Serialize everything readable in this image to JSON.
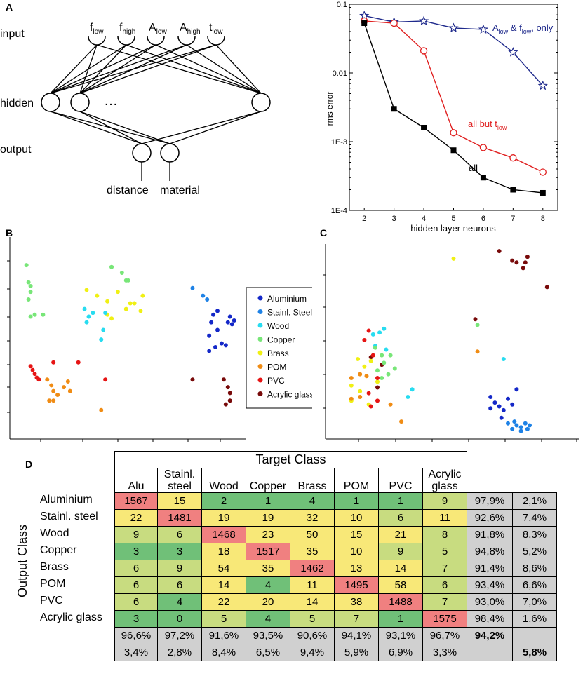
{
  "panels": {
    "a": "A",
    "b": "B",
    "c": "C",
    "d": "D"
  },
  "network": {
    "input_label": "input",
    "hidden_label": "hidden",
    "output_label": "output",
    "inputs": [
      {
        "main": "f",
        "sub": "low"
      },
      {
        "main": "f",
        "sub": "high"
      },
      {
        "main": "A",
        "sub": "low"
      },
      {
        "main": "A",
        "sub": "high"
      },
      {
        "main": "t",
        "sub": "low"
      }
    ],
    "ellipsis": "…",
    "outputs": [
      "distance",
      "material"
    ]
  },
  "chart_data": [
    {
      "type": "line",
      "ylabel": "rms error",
      "xlabel": "hidden layer neurons",
      "yscale": "log",
      "ylim": [
        0.0001,
        0.1
      ],
      "xlim": [
        1.5,
        8.5
      ],
      "x_ticks": [
        2,
        3,
        4,
        5,
        6,
        7,
        8
      ],
      "y_ticks": [
        {
          "value": 0.1,
          "label": "0.1"
        },
        {
          "value": 0.01,
          "label": "0.01"
        },
        {
          "value": 0.001,
          "label": "1E-3"
        },
        {
          "value": 0.0001,
          "label": "1E-4"
        }
      ],
      "series": [
        {
          "name": "A_low & f_low, only",
          "label_main": "A",
          "label_sub": "low",
          "label_mid": " & f",
          "label_sub2": "low",
          "label_end": ", only",
          "color": "#1f2a8c",
          "marker": "star",
          "x": [
            2,
            3,
            4,
            5,
            6,
            7,
            8
          ],
          "values": [
            0.068,
            0.055,
            0.057,
            0.045,
            0.043,
            0.02,
            0.0065
          ]
        },
        {
          "name": "all but t_low",
          "label_main": "all but t",
          "label_sub": "low",
          "color": "#e02020",
          "marker": "open-circle",
          "x": [
            2,
            3,
            4,
            5,
            6,
            7,
            8
          ],
          "values": [
            0.057,
            0.053,
            0.021,
            0.00135,
            0.00082,
            0.00058,
            0.00036
          ]
        },
        {
          "name": "all",
          "label_main": "all",
          "color": "#000000",
          "marker": "square",
          "x": [
            2,
            3,
            4,
            5,
            6,
            7,
            8
          ],
          "values": [
            0.053,
            0.003,
            0.0016,
            0.00075,
            0.0003,
            0.0002,
            0.00018
          ]
        }
      ]
    },
    {
      "type": "scatter",
      "panel": "B",
      "legend": [
        {
          "name": "Aluminium",
          "color": "#1428c8"
        },
        {
          "name": "Stainl. Steel",
          "color": "#1e82e6"
        },
        {
          "name": "Wood",
          "color": "#28dcf0"
        },
        {
          "name": "Copper",
          "color": "#78e678"
        },
        {
          "name": "Brass",
          "color": "#f0f014"
        },
        {
          "name": "POM",
          "color": "#f08c14"
        },
        {
          "name": "PVC",
          "color": "#e61414"
        },
        {
          "name": "Acrylic glass",
          "color": "#780a0a"
        }
      ],
      "points": [
        [
          0.08,
          0.86,
          3
        ],
        [
          0.09,
          0.77,
          3
        ],
        [
          0.1,
          0.75,
          3
        ],
        [
          0.1,
          0.72,
          3
        ],
        [
          0.09,
          0.68,
          3
        ],
        [
          0.12,
          0.6,
          3
        ],
        [
          0.1,
          0.59,
          3
        ],
        [
          0.16,
          0.6,
          3
        ],
        [
          0.49,
          0.85,
          3
        ],
        [
          0.54,
          0.82,
          3
        ],
        [
          0.56,
          0.78,
          3
        ],
        [
          0.57,
          0.78,
          3
        ],
        [
          0.37,
          0.73,
          4
        ],
        [
          0.42,
          0.7,
          4
        ],
        [
          0.47,
          0.67,
          4
        ],
        [
          0.52,
          0.72,
          4
        ],
        [
          0.58,
          0.66,
          4
        ],
        [
          0.56,
          0.63,
          4
        ],
        [
          0.6,
          0.66,
          4
        ],
        [
          0.64,
          0.7,
          4
        ],
        [
          0.63,
          0.62,
          4
        ],
        [
          0.47,
          0.6,
          4
        ],
        [
          0.49,
          0.58,
          4
        ],
        [
          0.36,
          0.63,
          2
        ],
        [
          0.38,
          0.59,
          2
        ],
        [
          0.4,
          0.61,
          2
        ],
        [
          0.37,
          0.56,
          2
        ],
        [
          0.46,
          0.61,
          2
        ],
        [
          0.45,
          0.52,
          2
        ],
        [
          0.44,
          0.47,
          2
        ],
        [
          0.88,
          0.74,
          1
        ],
        [
          0.93,
          0.7,
          1
        ],
        [
          0.95,
          0.68,
          1
        ],
        [
          1.0,
          0.62,
          0
        ],
        [
          0.98,
          0.6,
          0
        ],
        [
          0.97,
          0.56,
          0
        ],
        [
          1.0,
          0.52,
          0
        ],
        [
          0.96,
          0.49,
          0
        ],
        [
          1.02,
          0.45,
          0
        ],
        [
          0.99,
          0.43,
          0
        ],
        [
          0.96,
          0.41,
          0
        ],
        [
          1.05,
          0.56,
          0
        ],
        [
          1.07,
          0.55,
          0
        ],
        [
          1.08,
          0.57,
          0
        ],
        [
          1.06,
          0.59,
          0
        ],
        [
          1.04,
          0.44,
          0
        ],
        [
          0.1,
          0.33,
          6
        ],
        [
          0.11,
          0.31,
          6
        ],
        [
          0.12,
          0.29,
          6
        ],
        [
          0.13,
          0.27,
          6
        ],
        [
          0.14,
          0.26,
          6
        ],
        [
          0.21,
          0.35,
          6
        ],
        [
          0.33,
          0.35,
          6
        ],
        [
          0.46,
          0.26,
          6
        ],
        [
          0.18,
          0.26,
          5
        ],
        [
          0.2,
          0.23,
          5
        ],
        [
          0.21,
          0.2,
          5
        ],
        [
          0.23,
          0.18,
          5
        ],
        [
          0.19,
          0.15,
          5
        ],
        [
          0.21,
          0.15,
          5
        ],
        [
          0.26,
          0.22,
          5
        ],
        [
          0.28,
          0.25,
          5
        ],
        [
          0.29,
          0.2,
          5
        ],
        [
          0.44,
          0.1,
          5
        ],
        [
          0.88,
          0.26,
          7
        ],
        [
          1.03,
          0.26,
          7
        ],
        [
          1.05,
          0.22,
          7
        ],
        [
          1.06,
          0.19,
          7
        ],
        [
          1.06,
          0.15,
          7
        ],
        [
          1.04,
          0.13,
          7
        ]
      ]
    },
    {
      "type": "scatter",
      "panel": "C",
      "points": [
        [
          0.76,
          0.97,
          7
        ],
        [
          0.82,
          0.92,
          7
        ],
        [
          0.84,
          0.91,
          7
        ],
        [
          0.88,
          0.91,
          7
        ],
        [
          0.89,
          0.94,
          7
        ],
        [
          0.87,
          0.88,
          7
        ],
        [
          0.98,
          0.78,
          7
        ],
        [
          0.65,
          0.61,
          7
        ],
        [
          0.17,
          0.41,
          7
        ],
        [
          0.22,
          0.37,
          7
        ],
        [
          0.2,
          0.25,
          7
        ],
        [
          0.55,
          0.93,
          4
        ],
        [
          0.11,
          0.4,
          4
        ],
        [
          0.14,
          0.36,
          4
        ],
        [
          0.17,
          0.39,
          4
        ],
        [
          0.12,
          0.23,
          4
        ],
        [
          0.08,
          0.26,
          4
        ],
        [
          0.08,
          0.18,
          4
        ],
        [
          0.16,
          0.16,
          4
        ],
        [
          0.2,
          0.28,
          4
        ],
        [
          0.18,
          0.53,
          2
        ],
        [
          0.21,
          0.54,
          2
        ],
        [
          0.23,
          0.56,
          2
        ],
        [
          0.19,
          0.47,
          2
        ],
        [
          0.24,
          0.45,
          2
        ],
        [
          0.36,
          0.24,
          2
        ],
        [
          0.34,
          0.2,
          2
        ],
        [
          0.78,
          0.4,
          2
        ],
        [
          0.66,
          0.58,
          3
        ],
        [
          0.19,
          0.46,
          3
        ],
        [
          0.22,
          0.42,
          3
        ],
        [
          0.23,
          0.38,
          3
        ],
        [
          0.25,
          0.32,
          3
        ],
        [
          0.28,
          0.35,
          3
        ],
        [
          0.22,
          0.3,
          3
        ],
        [
          0.26,
          0.42,
          3
        ],
        [
          0.2,
          0.34,
          3
        ],
        [
          0.08,
          0.3,
          5
        ],
        [
          0.12,
          0.32,
          5
        ],
        [
          0.15,
          0.31,
          5
        ],
        [
          0.12,
          0.2,
          5
        ],
        [
          0.26,
          0.16,
          5
        ],
        [
          0.31,
          0.07,
          5
        ],
        [
          0.66,
          0.44,
          5
        ],
        [
          0.08,
          0.19,
          5
        ],
        [
          0.16,
          0.55,
          6
        ],
        [
          0.14,
          0.5,
          6
        ],
        [
          0.18,
          0.42,
          6
        ],
        [
          0.2,
          0.3,
          6
        ],
        [
          0.16,
          0.22,
          6
        ],
        [
          0.2,
          0.18,
          6
        ],
        [
          0.17,
          0.15,
          6
        ],
        [
          0.72,
          0.2,
          0
        ],
        [
          0.74,
          0.17,
          0
        ],
        [
          0.76,
          0.15,
          0
        ],
        [
          0.8,
          0.19,
          0
        ],
        [
          0.78,
          0.13,
          0
        ],
        [
          0.82,
          0.16,
          0
        ],
        [
          0.72,
          0.14,
          0
        ],
        [
          0.84,
          0.24,
          0
        ],
        [
          0.77,
          0.09,
          0
        ],
        [
          0.8,
          0.06,
          1
        ],
        [
          0.82,
          0.03,
          1
        ],
        [
          0.84,
          0.05,
          1
        ],
        [
          0.86,
          0.04,
          1
        ],
        [
          0.88,
          0.06,
          1
        ],
        [
          0.86,
          0.02,
          1
        ],
        [
          0.9,
          0.05,
          1
        ],
        [
          0.89,
          0.03,
          1
        ],
        [
          0.83,
          0.07,
          1
        ]
      ]
    }
  ],
  "confusion": {
    "target_class_label": "Target Class",
    "output_class_label": "Output Class",
    "col_headers": [
      {
        "l1": "",
        "l2": "Alu"
      },
      {
        "l1": "Stainl.",
        "l2": "steel"
      },
      {
        "l1": "",
        "l2": "Wood"
      },
      {
        "l1": "",
        "l2": "Copper"
      },
      {
        "l1": "",
        "l2": "Brass"
      },
      {
        "l1": "",
        "l2": "POM"
      },
      {
        "l1": "",
        "l2": "PVC"
      },
      {
        "l1": "Acrylic",
        "l2": "glass"
      }
    ],
    "row_labels": [
      "Aluminium",
      "Stainl. steel",
      "Wood",
      "Copper",
      "Brass",
      "POM",
      "PVC",
      "Acrylic glass"
    ],
    "matrix": [
      [
        "1567",
        "15",
        "2",
        "1",
        "4",
        "1",
        "1",
        "9"
      ],
      [
        "22",
        "1481",
        "19",
        "19",
        "32",
        "10",
        "6",
        "11"
      ],
      [
        "9",
        "6",
        "1468",
        "23",
        "50",
        "15",
        "21",
        "8"
      ],
      [
        "3",
        "3",
        "18",
        "1517",
        "35",
        "10",
        "9",
        "5"
      ],
      [
        "6",
        "9",
        "54",
        "35",
        "1462",
        "13",
        "14",
        "7"
      ],
      [
        "6",
        "6",
        "14",
        "4",
        "11",
        "1495",
        "58",
        "6"
      ],
      [
        "6",
        "4",
        "22",
        "20",
        "14",
        "38",
        "1488",
        "7"
      ],
      [
        "3",
        "0",
        "5",
        "4",
        "5",
        "7",
        "1",
        "1575"
      ]
    ],
    "row_correct": [
      "97,9%",
      "92,6%",
      "91,8%",
      "94,8%",
      "91,4%",
      "93,4%",
      "93,0%",
      "98,4%"
    ],
    "row_error": [
      "2,1%",
      "7,4%",
      "8,3%",
      "5,2%",
      "8,6%",
      "6,6%",
      "7,0%",
      "1,6%"
    ],
    "col_correct": [
      "96,6%",
      "97,2%",
      "91,6%",
      "93,5%",
      "90,6%",
      "94,1%",
      "93,1%",
      "96,7%"
    ],
    "col_error": [
      "3,4%",
      "2,8%",
      "8,4%",
      "6,5%",
      "9,4%",
      "5,9%",
      "6,9%",
      "3,3%"
    ],
    "overall_correct": "94,2%",
    "overall_error": "5,8%",
    "colors": {
      "diag": "#f08080",
      "high": "#f8e878",
      "mid": "#c8dc80",
      "low": "#70c078",
      "gray": "#d0d0d0"
    }
  }
}
